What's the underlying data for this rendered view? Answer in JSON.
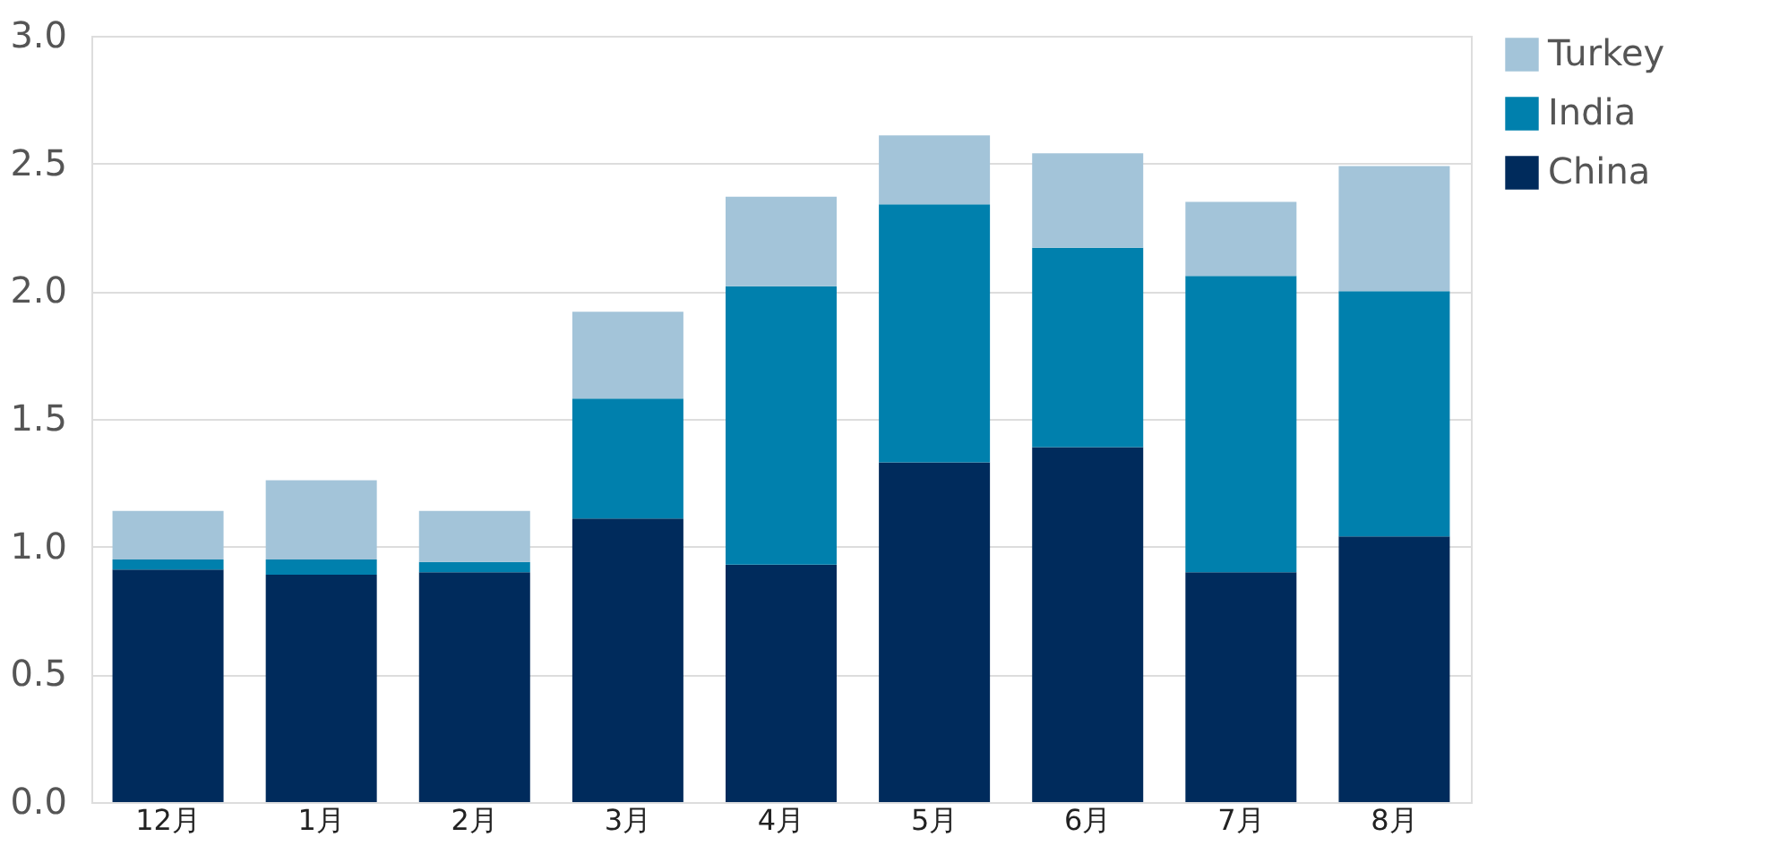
{
  "chart_data": {
    "type": "bar",
    "stacked": true,
    "categories": [
      "12月",
      "1月",
      "2月",
      "3月",
      "4月",
      "5月",
      "6月",
      "7月",
      "8月"
    ],
    "series": [
      {
        "name": "China",
        "color": "#002b5c",
        "values": [
          0.91,
          0.89,
          0.9,
          1.11,
          0.93,
          1.33,
          1.39,
          0.9,
          1.04
        ]
      },
      {
        "name": "India",
        "color": "#0080ad",
        "values": [
          0.04,
          0.06,
          0.04,
          0.47,
          1.09,
          1.01,
          0.78,
          1.16,
          0.96
        ]
      },
      {
        "name": "Turkey",
        "color": "#a3c4d9",
        "values": [
          0.19,
          0.31,
          0.2,
          0.34,
          0.35,
          0.27,
          0.37,
          0.29,
          0.49
        ]
      }
    ],
    "ylim": [
      0,
      3
    ],
    "yticks": [
      {
        "value": 0,
        "label": "0.0"
      },
      0.5,
      {
        "value": 1,
        "label": "1.0"
      },
      1.5,
      {
        "value": 2,
        "label": "2.0"
      },
      2.5,
      {
        "value": 3,
        "label": "3.0"
      }
    ],
    "grid": "y",
    "legend": "right"
  }
}
